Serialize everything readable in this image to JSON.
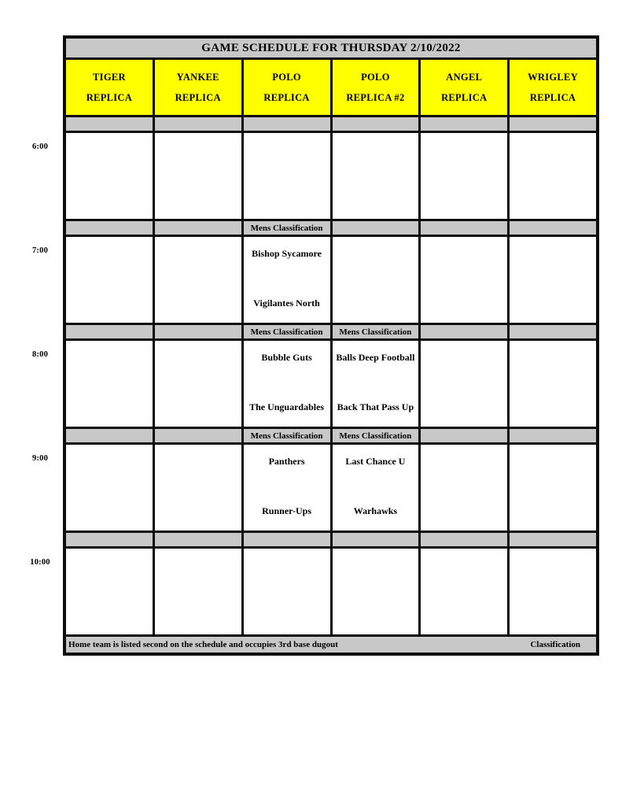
{
  "title": "GAME SCHEDULE FOR THURSDAY 2/10/2022",
  "columns": [
    {
      "line1": "TIGER",
      "line2": "REPLICA"
    },
    {
      "line1": "YANKEE",
      "line2": "REPLICA"
    },
    {
      "line1": "POLO",
      "line2": "REPLICA"
    },
    {
      "line1": "POLO",
      "line2": "REPLICA #2"
    },
    {
      "line1": "ANGEL",
      "line2": "REPLICA"
    },
    {
      "line1": "WRIGLEY",
      "line2": "REPLICA"
    }
  ],
  "classification_label": "Mens Classification",
  "slots": [
    {
      "time": "6:00",
      "separators": [
        "",
        "",
        "",
        "",
        "",
        ""
      ],
      "games": [
        null,
        null,
        null,
        null,
        null,
        null
      ]
    },
    {
      "time": "7:00",
      "separators": [
        "",
        "",
        "Mens Classification",
        "",
        "",
        ""
      ],
      "games": [
        null,
        null,
        {
          "away": "Bishop Sycamore",
          "home": "Vigilantes North"
        },
        null,
        null,
        null
      ]
    },
    {
      "time": "8:00",
      "separators": [
        "",
        "",
        "Mens Classification",
        "Mens Classification",
        "",
        ""
      ],
      "games": [
        null,
        null,
        {
          "away": "Bubble Guts",
          "home": "The Unguardables"
        },
        {
          "away": "Balls Deep Football",
          "home": "Back That Pass Up"
        },
        null,
        null
      ]
    },
    {
      "time": "9:00",
      "separators": [
        "",
        "",
        "Mens Classification",
        "Mens Classification",
        "",
        ""
      ],
      "games": [
        null,
        null,
        {
          "away": "Panthers",
          "home": "Runner-Ups"
        },
        {
          "away": "Last Chance U",
          "home": "Warhawks"
        },
        null,
        null
      ]
    },
    {
      "time": "10:00",
      "separators": [
        "",
        "",
        "",
        "",
        "",
        ""
      ],
      "games": [
        null,
        null,
        null,
        null,
        null,
        null
      ]
    }
  ],
  "footer": {
    "left": "Home team is listed second on the schedule and occupies 3rd base dugout",
    "right": "Classification"
  },
  "colors": {
    "header_yellow": "#ffff00",
    "band_gray": "#c8c8c8",
    "border_black": "#0d0d0d"
  }
}
